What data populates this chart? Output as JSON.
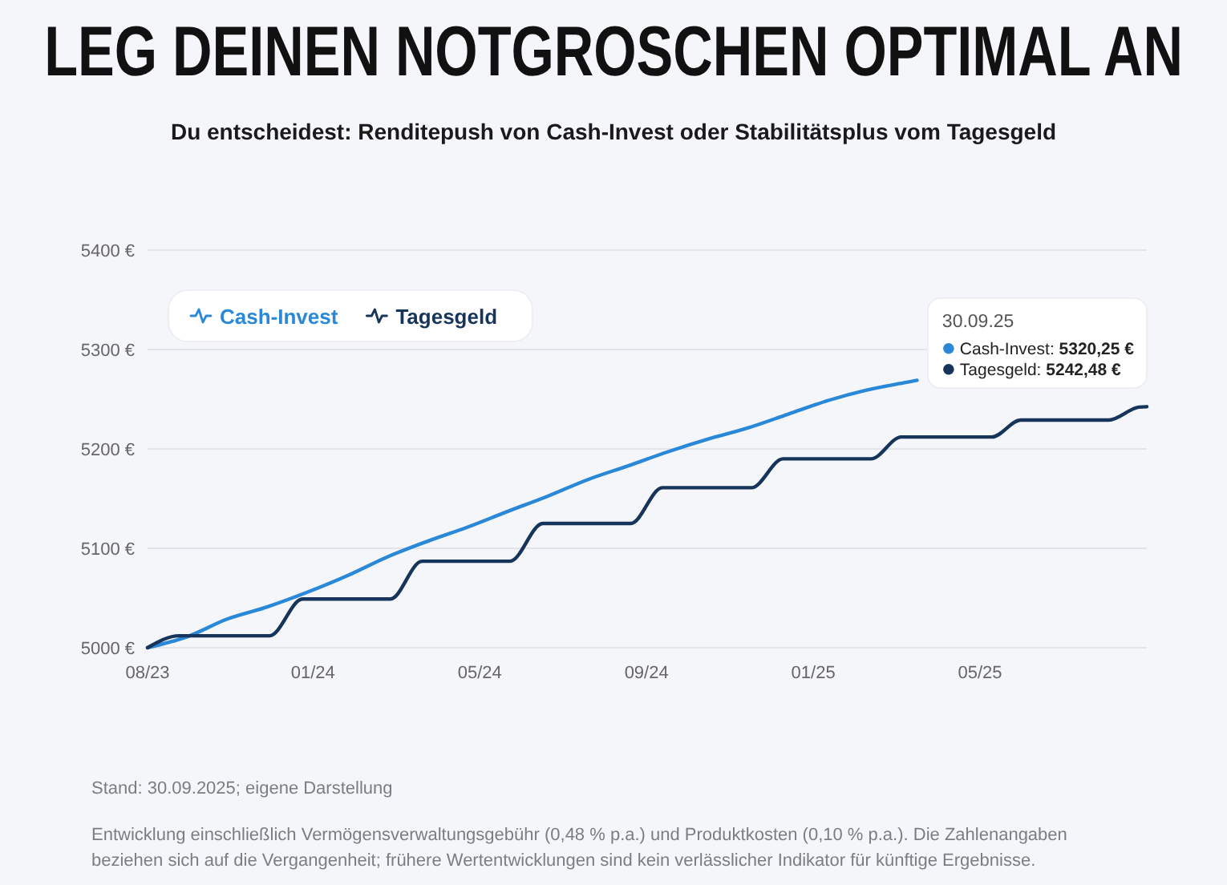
{
  "chart_data": {
    "type": "line",
    "title": "LEG DEINEN NOTGROSCHEN OPTIMAL AN",
    "subtitle": "Du entscheidest: Renditepush von Cash-Invest oder Stabilitätsplus vom Tagesgeld",
    "xlim": [
      "2023-08-31",
      "2025-09-30"
    ],
    "xticks": [
      {
        "value": "2023-08-31",
        "label": "08/23"
      },
      {
        "value": "2024-01-04",
        "label": "01/24"
      },
      {
        "value": "2024-05-10",
        "label": "05/24"
      },
      {
        "value": "2024-09-14",
        "label": "09/24"
      },
      {
        "value": "2025-01-19",
        "label": "01/25"
      },
      {
        "value": "2025-05-26",
        "label": "05/25"
      }
    ],
    "ylim": [
      5000,
      5400
    ],
    "yticks": [
      {
        "value": 5000,
        "label": "5000 €"
      },
      {
        "value": 5100,
        "label": "5100 €"
      },
      {
        "value": 5200,
        "label": "5200 €"
      },
      {
        "value": 5300,
        "label": "5300 €"
      },
      {
        "value": 5400,
        "label": "5400 €"
      }
    ],
    "grid": "y",
    "legend": "top left",
    "series": [
      {
        "name": "Cash-Invest",
        "color": "#2a88d8",
        "x": [
          "2023-08-31",
          "2023-09-30",
          "2023-10-31",
          "2023-11-30",
          "2023-12-31",
          "2024-01-31",
          "2024-02-29",
          "2024-03-31",
          "2024-04-30",
          "2024-05-31",
          "2024-06-30",
          "2024-07-31",
          "2024-08-31",
          "2024-09-30",
          "2024-10-31",
          "2024-11-30",
          "2024-12-31",
          "2025-01-31",
          "2025-02-28",
          "2025-03-31",
          "2025-04-08"
        ],
        "values": [
          5000,
          5011,
          5029,
          5041,
          5056,
          5073,
          5091,
          5107,
          5121,
          5137,
          5152,
          5169,
          5183,
          5197,
          5210,
          5221,
          5235,
          5249,
          5259,
          5267,
          5269
        ]
      },
      {
        "name": "Tagesgeld",
        "color": "#17355a",
        "x": [
          "2023-08-31",
          "2023-09-24",
          "2023-12-02",
          "2023-12-27",
          "2024-03-03",
          "2024-03-27",
          "2024-06-02",
          "2024-06-27",
          "2024-09-02",
          "2024-09-26",
          "2024-12-03",
          "2024-12-27",
          "2025-03-04",
          "2025-03-27",
          "2025-06-04",
          "2025-06-26",
          "2025-09-01",
          "2025-09-24",
          "2025-09-30"
        ],
        "values": [
          5000,
          5012,
          5012,
          5049,
          5049,
          5087,
          5087,
          5125,
          5125,
          5161,
          5161,
          5190,
          5190,
          5212,
          5212,
          5229,
          5229,
          5242,
          5242.48
        ]
      }
    ],
    "annotations": [
      "30.09.25",
      "Cash-Invest: 5320,25 €",
      "Tagesgeld: 5242,48 €",
      "Stand: 30.09.2025; eigene Darstellung",
      "Entwicklung einschließlich Vermögensverwaltungsgebühr (0,48 % p.a.) und Produktkosten (0,10 % p.a.). Die Zahlenangaben beziehen sich auf die Vergangenheit; frühere Wertentwicklungen sind kein verlässlicher Indikator für künftige Ergebnisse."
    ]
  }
}
